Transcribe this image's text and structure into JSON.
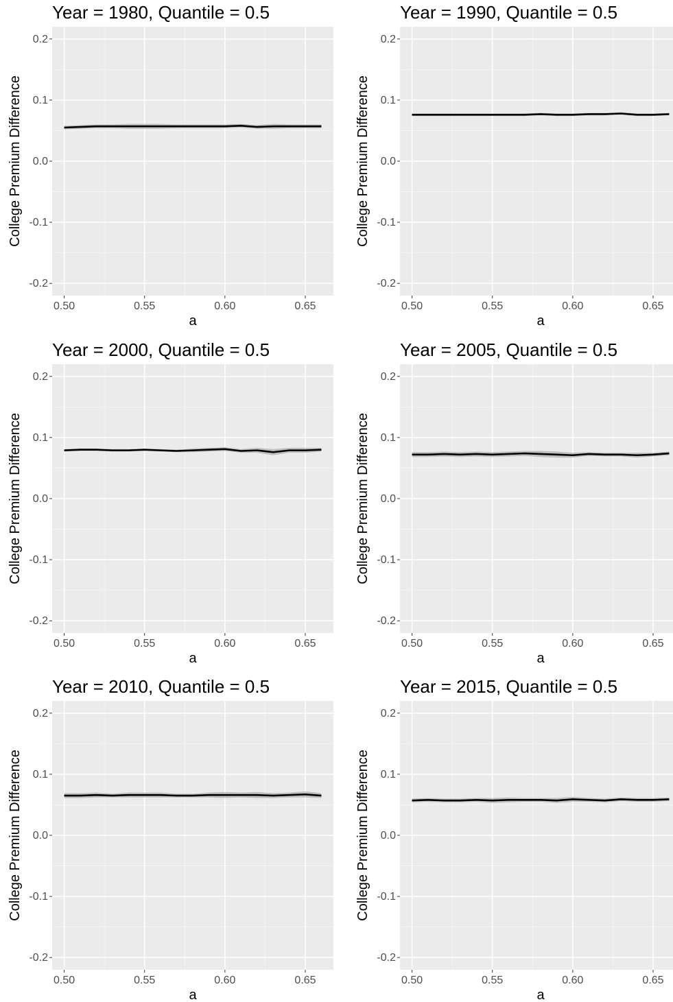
{
  "chart_data": [
    {
      "type": "line",
      "title": "Year = 1980, Quantile = 0.5",
      "xlabel": "a",
      "ylabel": "College Premium Difference",
      "xlim": [
        0.4925,
        0.6675
      ],
      "ylim": [
        -0.22,
        0.22
      ],
      "xticks": [
        "0.50",
        "0.55",
        "0.60",
        "0.65"
      ],
      "yticks": [
        "-0.2",
        "-0.1",
        "0.0",
        "0.1",
        "0.2"
      ],
      "grid": true,
      "x": [
        0.5,
        0.51,
        0.52,
        0.53,
        0.54,
        0.55,
        0.56,
        0.57,
        0.58,
        0.59,
        0.6,
        0.61,
        0.62,
        0.63,
        0.64,
        0.65,
        0.66
      ],
      "series": [
        {
          "values": [
            0.055,
            0.056,
            0.057,
            0.057,
            0.057,
            0.057,
            0.057,
            0.057,
            0.057,
            0.057,
            0.057,
            0.058,
            0.056,
            0.057,
            0.057,
            0.057,
            0.057
          ],
          "band": [
            0.003,
            0.003,
            0.003,
            0.003,
            0.004,
            0.004,
            0.004,
            0.003,
            0.003,
            0.003,
            0.003,
            0.003,
            0.003,
            0.004,
            0.003,
            0.003,
            0.003
          ]
        }
      ]
    },
    {
      "type": "line",
      "title": "Year = 1990, Quantile = 0.5",
      "xlabel": "a",
      "ylabel": "College Premium Difference",
      "xlim": [
        0.4925,
        0.6675
      ],
      "ylim": [
        -0.22,
        0.22
      ],
      "xticks": [
        "0.50",
        "0.55",
        "0.60",
        "0.65"
      ],
      "yticks": [
        "-0.2",
        "-0.1",
        "0.0",
        "0.1",
        "0.2"
      ],
      "grid": true,
      "x": [
        0.5,
        0.51,
        0.52,
        0.53,
        0.54,
        0.55,
        0.56,
        0.57,
        0.58,
        0.59,
        0.6,
        0.61,
        0.62,
        0.63,
        0.64,
        0.65,
        0.66
      ],
      "series": [
        {
          "values": [
            0.076,
            0.076,
            0.076,
            0.076,
            0.076,
            0.076,
            0.076,
            0.076,
            0.077,
            0.076,
            0.076,
            0.077,
            0.077,
            0.078,
            0.076,
            0.076,
            0.077
          ],
          "band": [
            0.002,
            0.002,
            0.002,
            0.002,
            0.002,
            0.002,
            0.002,
            0.002,
            0.002,
            0.002,
            0.002,
            0.002,
            0.002,
            0.002,
            0.002,
            0.002,
            0.002
          ]
        }
      ]
    },
    {
      "type": "line",
      "title": "Year = 2000, Quantile = 0.5",
      "xlabel": "a",
      "ylabel": "College Premium Difference",
      "xlim": [
        0.4925,
        0.6675
      ],
      "ylim": [
        -0.22,
        0.22
      ],
      "xticks": [
        "0.50",
        "0.55",
        "0.60",
        "0.65"
      ],
      "yticks": [
        "-0.2",
        "-0.1",
        "0.0",
        "0.1",
        "0.2"
      ],
      "grid": true,
      "x": [
        0.5,
        0.51,
        0.52,
        0.53,
        0.54,
        0.55,
        0.56,
        0.57,
        0.58,
        0.59,
        0.6,
        0.61,
        0.62,
        0.63,
        0.64,
        0.65,
        0.66
      ],
      "series": [
        {
          "values": [
            0.079,
            0.08,
            0.08,
            0.079,
            0.079,
            0.08,
            0.079,
            0.078,
            0.079,
            0.08,
            0.081,
            0.078,
            0.079,
            0.076,
            0.079,
            0.079,
            0.08
          ],
          "band": [
            0.002,
            0.002,
            0.002,
            0.002,
            0.002,
            0.002,
            0.002,
            0.002,
            0.003,
            0.003,
            0.003,
            0.003,
            0.004,
            0.005,
            0.004,
            0.004,
            0.003
          ]
        }
      ]
    },
    {
      "type": "line",
      "title": "Year = 2005, Quantile = 0.5",
      "xlabel": "a",
      "ylabel": "College Premium Difference",
      "xlim": [
        0.4925,
        0.6675
      ],
      "ylim": [
        -0.22,
        0.22
      ],
      "xticks": [
        "0.50",
        "0.55",
        "0.60",
        "0.65"
      ],
      "yticks": [
        "-0.2",
        "-0.1",
        "0.0",
        "0.1",
        "0.2"
      ],
      "grid": true,
      "x": [
        0.5,
        0.51,
        0.52,
        0.53,
        0.54,
        0.55,
        0.56,
        0.57,
        0.58,
        0.59,
        0.6,
        0.61,
        0.62,
        0.63,
        0.64,
        0.65,
        0.66
      ],
      "series": [
        {
          "values": [
            0.072,
            0.072,
            0.073,
            0.072,
            0.073,
            0.072,
            0.073,
            0.074,
            0.073,
            0.072,
            0.071,
            0.073,
            0.072,
            0.072,
            0.071,
            0.072,
            0.074
          ],
          "band": [
            0.004,
            0.004,
            0.004,
            0.004,
            0.004,
            0.004,
            0.004,
            0.004,
            0.005,
            0.005,
            0.004,
            0.003,
            0.003,
            0.003,
            0.004,
            0.003,
            0.003
          ]
        }
      ]
    },
    {
      "type": "line",
      "title": "Year = 2010, Quantile = 0.5",
      "xlabel": "a",
      "ylabel": "College Premium Difference",
      "xlim": [
        0.4925,
        0.6675
      ],
      "ylim": [
        -0.22,
        0.22
      ],
      "xticks": [
        "0.50",
        "0.55",
        "0.60",
        "0.65"
      ],
      "yticks": [
        "-0.2",
        "-0.1",
        "0.0",
        "0.1",
        "0.2"
      ],
      "grid": true,
      "x": [
        0.5,
        0.51,
        0.52,
        0.53,
        0.54,
        0.55,
        0.56,
        0.57,
        0.58,
        0.59,
        0.6,
        0.61,
        0.62,
        0.63,
        0.64,
        0.65,
        0.66
      ],
      "series": [
        {
          "values": [
            0.065,
            0.065,
            0.066,
            0.065,
            0.066,
            0.066,
            0.066,
            0.065,
            0.065,
            0.066,
            0.066,
            0.066,
            0.066,
            0.065,
            0.066,
            0.067,
            0.065
          ],
          "band": [
            0.004,
            0.004,
            0.004,
            0.003,
            0.004,
            0.004,
            0.004,
            0.003,
            0.003,
            0.004,
            0.005,
            0.004,
            0.005,
            0.004,
            0.004,
            0.005,
            0.004
          ]
        }
      ]
    },
    {
      "type": "line",
      "title": "Year = 2015, Quantile = 0.5",
      "xlabel": "a",
      "ylabel": "College Premium Difference",
      "xlim": [
        0.4925,
        0.6675
      ],
      "ylim": [
        -0.22,
        0.22
      ],
      "xticks": [
        "0.50",
        "0.55",
        "0.60",
        "0.65"
      ],
      "yticks": [
        "-0.2",
        "-0.1",
        "0.0",
        "0.1",
        "0.2"
      ],
      "grid": true,
      "x": [
        0.5,
        0.51,
        0.52,
        0.53,
        0.54,
        0.55,
        0.56,
        0.57,
        0.58,
        0.59,
        0.6,
        0.61,
        0.62,
        0.63,
        0.64,
        0.65,
        0.66
      ],
      "series": [
        {
          "values": [
            0.057,
            0.058,
            0.057,
            0.057,
            0.058,
            0.057,
            0.058,
            0.058,
            0.058,
            0.057,
            0.059,
            0.058,
            0.057,
            0.059,
            0.058,
            0.058,
            0.059
          ],
          "band": [
            0.003,
            0.003,
            0.003,
            0.003,
            0.003,
            0.004,
            0.004,
            0.003,
            0.003,
            0.004,
            0.004,
            0.003,
            0.003,
            0.003,
            0.003,
            0.003,
            0.003
          ]
        }
      ]
    }
  ]
}
